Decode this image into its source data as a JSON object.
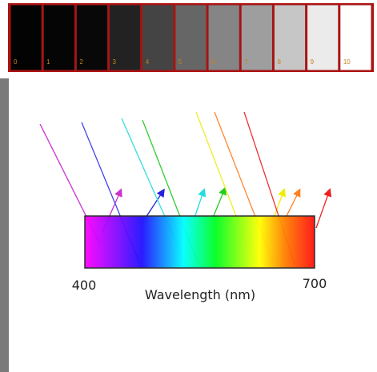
{
  "gray_scale": {
    "labels": [
      "0",
      "1",
      "2",
      "3",
      "4",
      "5",
      "6",
      "7",
      "8",
      "9",
      "10"
    ]
  },
  "spectrum": {
    "start_label": "400",
    "end_label": "700",
    "axis_title": "Wavelength (nm)"
  }
}
